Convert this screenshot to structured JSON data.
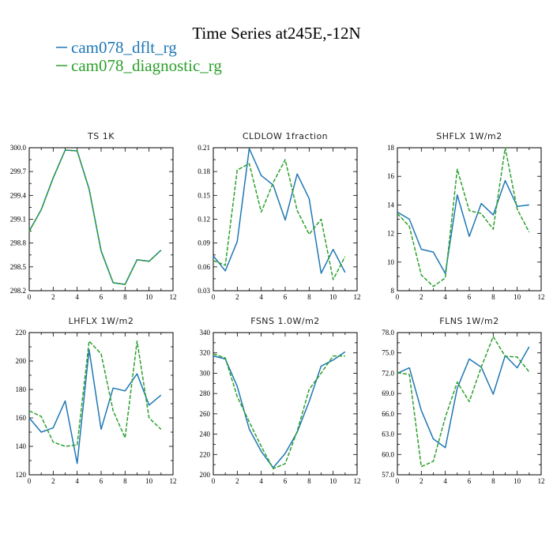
{
  "figure": {
    "title": "Time Series at245E,-12N",
    "legend": [
      {
        "label": "cam078_dflt_rg",
        "color": "#1f77b4"
      },
      {
        "label": "cam078_diagnostic_rg",
        "color": "#2ca02c"
      }
    ]
  },
  "chart_data": [
    {
      "type": "line",
      "title": "TS   1K",
      "x": [
        0,
        1,
        2,
        3,
        4,
        5,
        6,
        7,
        8,
        9,
        10,
        11
      ],
      "xlim": [
        0,
        12
      ],
      "xticks": [
        0,
        2,
        4,
        6,
        8,
        10,
        12
      ],
      "ylim": [
        298.2,
        300.0
      ],
      "yticks": [
        298.2,
        298.5,
        298.8,
        299.1,
        299.4,
        299.7,
        300.0
      ],
      "ytick_labels": [
        "298.2",
        "298.5",
        "298.8",
        "299.1",
        "299.4",
        "299.7",
        "300.0"
      ],
      "series": [
        {
          "name": "cam078_dflt_rg",
          "color": "#1f77b4",
          "dashed": false,
          "values": [
            298.95,
            299.22,
            299.62,
            299.97,
            299.96,
            299.48,
            298.7,
            298.3,
            298.28,
            298.59,
            298.57,
            298.71
          ]
        },
        {
          "name": "cam078_diagnostic_rg",
          "color": "#2ca02c",
          "dashed": true,
          "values": [
            298.95,
            299.22,
            299.62,
            299.97,
            299.96,
            299.48,
            298.7,
            298.3,
            298.28,
            298.59,
            298.57,
            298.71
          ]
        }
      ]
    },
    {
      "type": "line",
      "title": "CLDLOW   1fraction",
      "x": [
        0,
        1,
        2,
        3,
        4,
        5,
        6,
        7,
        8,
        9,
        10,
        11
      ],
      "xlim": [
        0,
        12
      ],
      "xticks": [
        0,
        2,
        4,
        6,
        8,
        10,
        12
      ],
      "ylim": [
        0.03,
        0.21
      ],
      "yticks": [
        0.03,
        0.06,
        0.09,
        0.12,
        0.15,
        0.18,
        0.21
      ],
      "ytick_labels": [
        "0.03",
        "0.06",
        "0.09",
        "0.12",
        "0.15",
        "0.18",
        "0.21"
      ],
      "series": [
        {
          "name": "cam078_dflt_rg",
          "color": "#1f77b4",
          "dashed": false,
          "values": [
            0.074,
            0.055,
            0.092,
            0.209,
            0.175,
            0.163,
            0.119,
            0.177,
            0.146,
            0.052,
            0.082,
            0.053
          ]
        },
        {
          "name": "cam078_diagnostic_rg",
          "color": "#2ca02c",
          "dashed": true,
          "values": [
            0.068,
            0.062,
            0.182,
            0.19,
            0.129,
            0.166,
            0.195,
            0.131,
            0.101,
            0.12,
            0.044,
            0.073
          ]
        }
      ]
    },
    {
      "type": "line",
      "title": "SHFLX   1W/m2",
      "x": [
        0,
        1,
        2,
        3,
        4,
        5,
        6,
        7,
        8,
        9,
        10,
        11
      ],
      "xlim": [
        0,
        12
      ],
      "xticks": [
        0,
        2,
        4,
        6,
        8,
        10,
        12
      ],
      "ylim": [
        8,
        18
      ],
      "yticks": [
        8,
        10,
        12,
        14,
        16,
        18
      ],
      "ytick_labels": [
        "8",
        "10",
        "12",
        "14",
        "16",
        "18"
      ],
      "series": [
        {
          "name": "cam078_dflt_rg",
          "color": "#1f77b4",
          "dashed": false,
          "values": [
            13.5,
            13.0,
            10.9,
            10.7,
            9.2,
            14.7,
            11.8,
            14.1,
            13.3,
            15.7,
            13.9,
            14.0
          ]
        },
        {
          "name": "cam078_diagnostic_rg",
          "color": "#2ca02c",
          "dashed": true,
          "values": [
            13.4,
            12.5,
            9.1,
            8.3,
            8.9,
            16.5,
            13.6,
            13.4,
            12.3,
            18.0,
            13.7,
            12.1
          ]
        }
      ]
    },
    {
      "type": "line",
      "title": "LHFLX   1W/m2",
      "x": [
        0,
        1,
        2,
        3,
        4,
        5,
        6,
        7,
        8,
        9,
        10,
        11
      ],
      "xlim": [
        0,
        12
      ],
      "xticks": [
        0,
        2,
        4,
        6,
        8,
        10,
        12
      ],
      "ylim": [
        120,
        220
      ],
      "yticks": [
        120,
        140,
        160,
        180,
        200,
        220
      ],
      "ytick_labels": [
        "120",
        "140",
        "160",
        "180",
        "200",
        "220"
      ],
      "series": [
        {
          "name": "cam078_dflt_rg",
          "color": "#1f77b4",
          "dashed": false,
          "values": [
            160,
            150,
            153,
            172,
            128,
            208,
            152,
            181,
            179,
            191,
            169,
            176
          ]
        },
        {
          "name": "cam078_diagnostic_rg",
          "color": "#2ca02c",
          "dashed": true,
          "values": [
            165,
            161,
            143,
            140,
            141,
            214,
            205,
            165,
            146,
            214,
            160,
            152
          ]
        }
      ]
    },
    {
      "type": "line",
      "title": "FSNS   1.0W/m2",
      "x": [
        0,
        1,
        2,
        3,
        4,
        5,
        6,
        7,
        8,
        9,
        10,
        11
      ],
      "xlim": [
        0,
        12
      ],
      "xticks": [
        0,
        2,
        4,
        6,
        8,
        10,
        12
      ],
      "ylim": [
        200,
        340
      ],
      "yticks": [
        200,
        220,
        240,
        260,
        280,
        300,
        320,
        340
      ],
      "ytick_labels": [
        "200",
        "220",
        "240",
        "260",
        "280",
        "300",
        "320",
        "340"
      ],
      "series": [
        {
          "name": "cam078_dflt_rg",
          "color": "#1f77b4",
          "dashed": false,
          "values": [
            317,
            314,
            287,
            245,
            223,
            207,
            221,
            242,
            272,
            307,
            313,
            321
          ]
        },
        {
          "name": "cam078_diagnostic_rg",
          "color": "#2ca02c",
          "dashed": true,
          "values": [
            319,
            315,
            277,
            252,
            228,
            206,
            211,
            243,
            284,
            300,
            317,
            317
          ]
        }
      ]
    },
    {
      "type": "line",
      "title": "FLNS   1W/m2",
      "x": [
        0,
        1,
        2,
        3,
        4,
        5,
        6,
        7,
        8,
        9,
        10,
        11
      ],
      "xlim": [
        0,
        12
      ],
      "xticks": [
        0,
        2,
        4,
        6,
        8,
        10,
        12
      ],
      "ylim": [
        57,
        78
      ],
      "yticks": [
        57,
        60,
        63,
        66,
        69,
        72,
        75,
        78
      ],
      "ytick_labels": [
        "57.0",
        "60.0",
        "63.0",
        "66.0",
        "69.0",
        "72.0",
        "75.0",
        "78.0"
      ],
      "series": [
        {
          "name": "cam078_dflt_rg",
          "color": "#1f77b4",
          "dashed": false,
          "values": [
            72.0,
            72.8,
            66.5,
            62.3,
            61.0,
            69.8,
            74.1,
            72.9,
            68.9,
            74.6,
            72.8,
            75.9
          ]
        },
        {
          "name": "cam078_diagnostic_rg",
          "color": "#2ca02c",
          "dashed": true,
          "values": [
            72.1,
            71.8,
            58.2,
            59.0,
            65.5,
            70.7,
            67.8,
            72.9,
            77.4,
            74.5,
            74.4,
            72.2
          ]
        }
      ]
    }
  ]
}
